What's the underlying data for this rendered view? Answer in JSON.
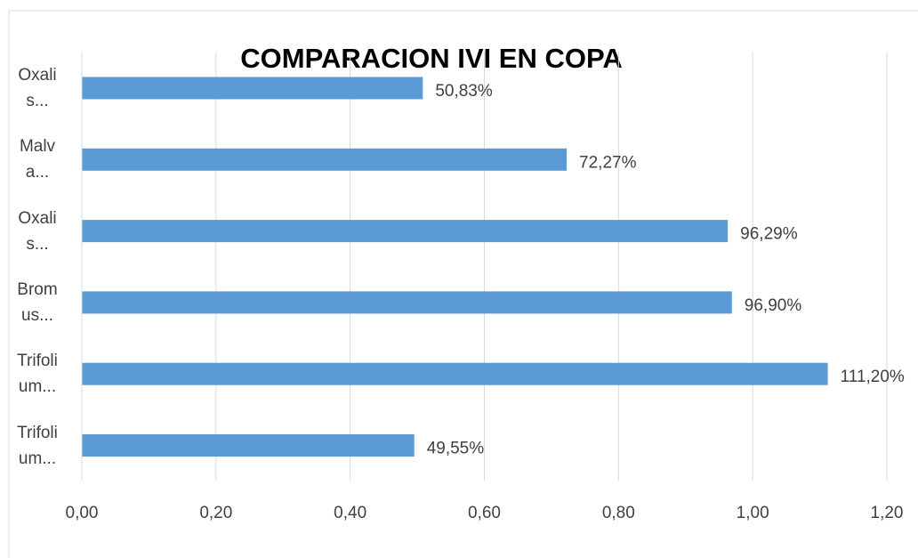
{
  "chart_data": {
    "type": "hbar",
    "title": "COMPARACION  IVI EN COPA",
    "categories": [
      "Oxalis...",
      "Malva...",
      "Oxalis...",
      "Bromus...",
      "Trifolium...",
      "Trifolium..."
    ],
    "values": [
      0.5083,
      0.7227,
      0.9629,
      0.969,
      1.112,
      0.4955
    ],
    "value_labels": [
      "50,83%",
      "72,27%",
      "96,29%",
      "96,90%",
      "111,20%",
      "49,55%"
    ],
    "color": "#5b9bd5",
    "xlim": [
      0,
      1.2
    ],
    "xticks": [
      {
        "value": 0,
        "label": "0,00"
      },
      {
        "value": 0.2,
        "label": "0,20"
      },
      {
        "value": 0.4,
        "label": "0,40"
      },
      {
        "value": 0.6,
        "label": "0,60"
      },
      {
        "value": 0.8,
        "label": "0,80"
      },
      {
        "value": 1.0,
        "label": "1,00"
      },
      {
        "value": 1.2,
        "label": "1,20"
      }
    ],
    "grid": true
  }
}
